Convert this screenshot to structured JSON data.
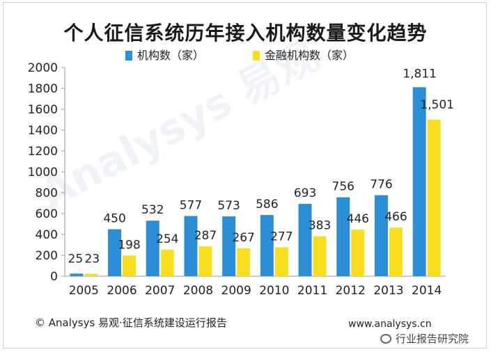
{
  "watermark": "Analysys 易观",
  "footer": {
    "source": "© Analysys 易观·征信系统建设运行报告",
    "url": "www.analysys.cn",
    "badge": "行业报告研究院"
  },
  "chart_data": {
    "type": "bar",
    "title": "个人征信系统历年接入机构数量变化趋势",
    "xlabel": "",
    "ylabel": "",
    "ylim": [
      0,
      2000
    ],
    "yticks": [
      "0",
      "200",
      "400",
      "600",
      "800",
      "1000",
      "1200",
      "1400",
      "1600",
      "1800",
      "2000"
    ],
    "grid": false,
    "legend_position": "top-center",
    "categories": [
      "2005",
      "2006",
      "2007",
      "2008",
      "2009",
      "2010",
      "2011",
      "2012",
      "2013",
      "2014"
    ],
    "series": [
      {
        "name": "机构数（家）",
        "color": "#2c8fd6",
        "values": [
          25,
          450,
          532,
          577,
          573,
          586,
          693,
          756,
          776,
          1811
        ],
        "labels": [
          "25",
          "450",
          "532",
          "577",
          "573",
          "586",
          "693",
          "756",
          "776",
          "1,811"
        ]
      },
      {
        "name": "金融机构数（家）",
        "color": "#f8de1c",
        "values": [
          23,
          198,
          254,
          287,
          267,
          277,
          383,
          446,
          466,
          1501
        ],
        "labels": [
          "23",
          "198",
          "254",
          "287",
          "267",
          "277",
          "383",
          "446",
          "466",
          "1,501"
        ]
      }
    ]
  }
}
